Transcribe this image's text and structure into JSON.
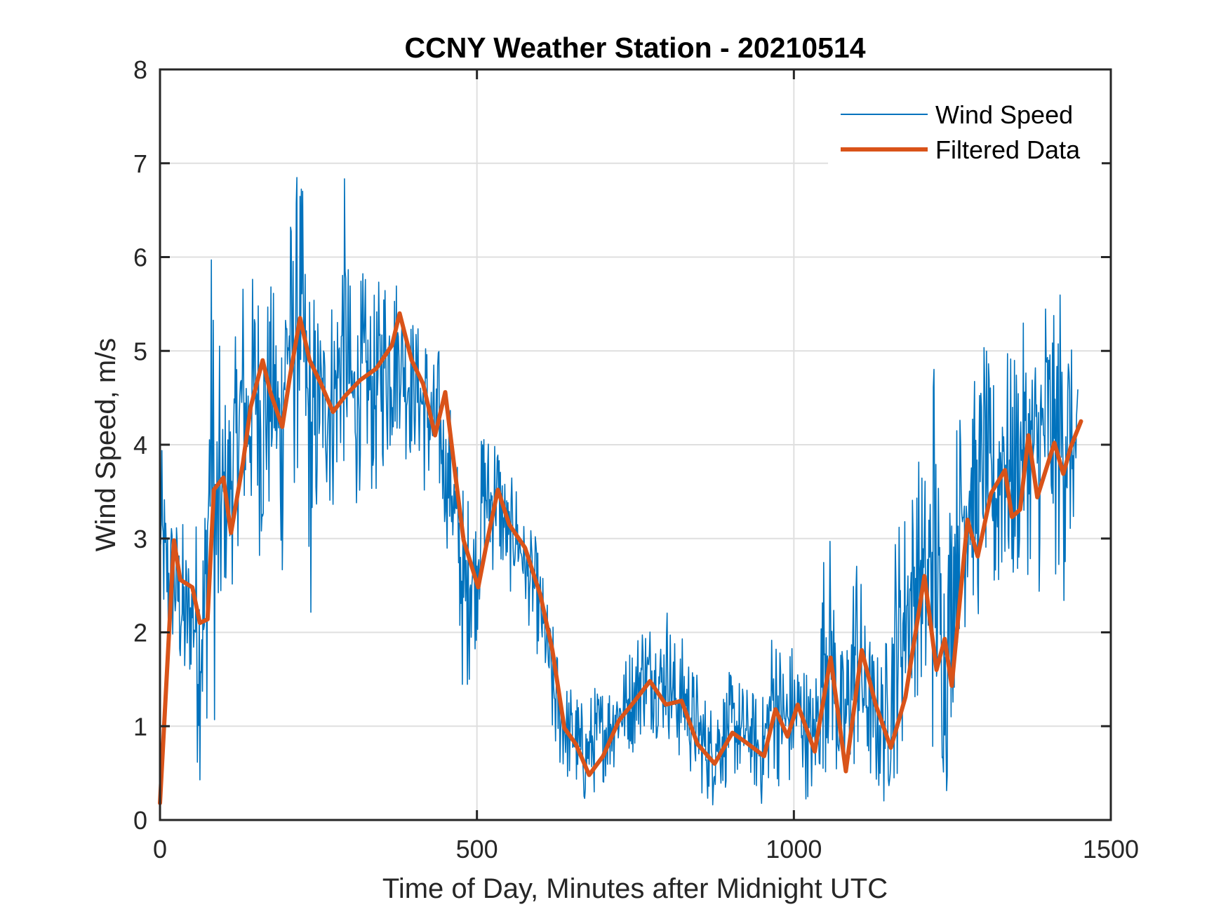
{
  "chart_data": {
    "type": "line",
    "title": "CCNY Weather Station - 20210514",
    "xlabel": "Time of Day, Minutes after Midnight UTC",
    "ylabel": "Wind Speed, m/s",
    "xlim": [
      0,
      1500
    ],
    "ylim": [
      0,
      8
    ],
    "xticks": [
      0,
      500,
      1000,
      1500
    ],
    "xtick_labels": [
      "0",
      "500",
      "1000",
      "1500"
    ],
    "yticks": [
      0,
      1,
      2,
      3,
      4,
      5,
      6,
      7,
      8
    ],
    "ytick_labels": [
      "0",
      "1",
      "2",
      "3",
      "4",
      "5",
      "6",
      "7",
      "8"
    ],
    "grid": true,
    "legend": {
      "placement": "top-right",
      "entries": [
        "Wind Speed",
        "Filtered Data"
      ]
    },
    "colors": {
      "wind_speed": "#0072BD",
      "filtered": "#D95319",
      "axis": "#262626",
      "grid": "#DFDFDF"
    },
    "series": [
      {
        "name": "Wind Speed",
        "description": "raw 1-minute wind speed, summarized as [minute, low, high] envelope samples",
        "envelope": [
          [
            0,
            2.3,
            4.1
          ],
          [
            10,
            1.6,
            3.6
          ],
          [
            20,
            1.7,
            3.4
          ],
          [
            30,
            1.4,
            3.3
          ],
          [
            40,
            0.9,
            3.2
          ],
          [
            50,
            1.5,
            3.0
          ],
          [
            60,
            0.4,
            3.5
          ],
          [
            70,
            0.4,
            3.7
          ],
          [
            80,
            1.8,
            6.4
          ],
          [
            90,
            0.4,
            5.4
          ],
          [
            100,
            2.3,
            4.6
          ],
          [
            110,
            2.2,
            4.8
          ],
          [
            120,
            2.9,
            5.2
          ],
          [
            130,
            2.9,
            6.1
          ],
          [
            140,
            2.8,
            5.6
          ],
          [
            150,
            3.2,
            6.1
          ],
          [
            160,
            2.6,
            5.9
          ],
          [
            170,
            2.9,
            5.8
          ],
          [
            180,
            3.4,
            5.7
          ],
          [
            190,
            2.1,
            5.9
          ],
          [
            200,
            3.4,
            6.9
          ],
          [
            210,
            3.3,
            6.5
          ],
          [
            220,
            3.7,
            7.3
          ],
          [
            230,
            3.1,
            6.2
          ],
          [
            240,
            1.8,
            5.9
          ],
          [
            250,
            3.3,
            5.6
          ],
          [
            260,
            3.4,
            5.5
          ],
          [
            270,
            3.1,
            5.8
          ],
          [
            280,
            3.4,
            6.0
          ],
          [
            290,
            3.6,
            7.0
          ],
          [
            300,
            3.4,
            5.8
          ],
          [
            310,
            3.2,
            5.6
          ],
          [
            320,
            3.8,
            5.9
          ],
          [
            330,
            3.5,
            5.7
          ],
          [
            340,
            3.3,
            5.6
          ],
          [
            350,
            3.7,
            6.0
          ],
          [
            360,
            3.6,
            6.3
          ],
          [
            370,
            3.9,
            6.0
          ],
          [
            380,
            4.2,
            5.8
          ],
          [
            390,
            3.7,
            5.6
          ],
          [
            400,
            3.9,
            5.4
          ],
          [
            410,
            3.7,
            5.3
          ],
          [
            420,
            3.3,
            5.4
          ],
          [
            430,
            3.4,
            4.9
          ],
          [
            440,
            3.3,
            5.1
          ],
          [
            450,
            3.0,
            4.4
          ],
          [
            460,
            2.6,
            4.5
          ],
          [
            470,
            2.1,
            3.9
          ],
          [
            480,
            1.0,
            3.6
          ],
          [
            490,
            1.6,
            3.6
          ],
          [
            500,
            1.9,
            3.4
          ],
          [
            510,
            2.6,
            4.4
          ],
          [
            520,
            2.5,
            4.2
          ],
          [
            530,
            2.7,
            4.4
          ],
          [
            540,
            2.5,
            4.0
          ],
          [
            550,
            2.4,
            3.5
          ],
          [
            560,
            2.4,
            3.8
          ],
          [
            570,
            2.4,
            3.3
          ],
          [
            580,
            2.1,
            3.1
          ],
          [
            590,
            1.9,
            3.1
          ],
          [
            600,
            1.6,
            2.8
          ],
          [
            610,
            1.3,
            2.4
          ],
          [
            620,
            0.6,
            2.1
          ],
          [
            630,
            0.5,
            1.8
          ],
          [
            640,
            0.4,
            1.5
          ],
          [
            650,
            0.3,
            1.5
          ],
          [
            660,
            0.2,
            1.4
          ],
          [
            670,
            0.1,
            1.2
          ],
          [
            680,
            0.2,
            1.4
          ],
          [
            690,
            0.3,
            1.5
          ],
          [
            700,
            0.4,
            1.5
          ],
          [
            710,
            0.4,
            1.6
          ],
          [
            720,
            0.6,
            1.7
          ],
          [
            730,
            0.6,
            1.7
          ],
          [
            740,
            0.7,
            1.9
          ],
          [
            750,
            0.7,
            2.0
          ],
          [
            760,
            0.9,
            2.3
          ],
          [
            770,
            0.9,
            2.2
          ],
          [
            780,
            0.9,
            2.3
          ],
          [
            790,
            0.8,
            2.1
          ],
          [
            800,
            0.9,
            2.4
          ],
          [
            810,
            0.6,
            2.0
          ],
          [
            820,
            0.6,
            1.9
          ],
          [
            830,
            0.5,
            2.1
          ],
          [
            840,
            0.4,
            1.7
          ],
          [
            850,
            0.3,
            1.6
          ],
          [
            860,
            0.2,
            1.4
          ],
          [
            870,
            0.1,
            1.3
          ],
          [
            880,
            0.2,
            1.5
          ],
          [
            890,
            0.3,
            1.5
          ],
          [
            900,
            0.4,
            1.6
          ],
          [
            910,
            0.4,
            1.6
          ],
          [
            920,
            0.3,
            1.5
          ],
          [
            930,
            0.5,
            1.4
          ],
          [
            940,
            0.2,
            1.4
          ],
          [
            950,
            0.1,
            1.3
          ],
          [
            960,
            0.3,
            1.9
          ],
          [
            970,
            0.4,
            2.4
          ],
          [
            980,
            0.3,
            1.9
          ],
          [
            990,
            0.2,
            1.9
          ],
          [
            1000,
            0.3,
            2.0
          ],
          [
            1010,
            0.4,
            1.9
          ],
          [
            1020,
            0.2,
            1.7
          ],
          [
            1030,
            0.1,
            1.5
          ],
          [
            1040,
            0.3,
            2.2
          ],
          [
            1050,
            0.5,
            3.4
          ],
          [
            1060,
            0.6,
            3.0
          ],
          [
            1070,
            0.2,
            2.0
          ],
          [
            1080,
            0.1,
            1.8
          ],
          [
            1090,
            0.3,
            2.7
          ],
          [
            1100,
            0.5,
            3.3
          ],
          [
            1110,
            0.4,
            2.2
          ],
          [
            1120,
            0.3,
            2.1
          ],
          [
            1130,
            0.2,
            1.8
          ],
          [
            1140,
            0.1,
            1.9
          ],
          [
            1150,
            0.2,
            2.1
          ],
          [
            1160,
            0.4,
            3.3
          ],
          [
            1170,
            0.6,
            3.4
          ],
          [
            1180,
            1.1,
            3.6
          ],
          [
            1190,
            1.3,
            3.8
          ],
          [
            1200,
            1.3,
            4.0
          ],
          [
            1210,
            0.8,
            3.8
          ],
          [
            1220,
            0.5,
            5.6
          ],
          [
            1230,
            0.7,
            3.6
          ],
          [
            1240,
            0.1,
            3.2
          ],
          [
            1250,
            1.1,
            4.1
          ],
          [
            1260,
            1.9,
            4.5
          ],
          [
            1270,
            2.0,
            4.6
          ],
          [
            1280,
            2.3,
            4.9
          ],
          [
            1290,
            2.0,
            4.6
          ],
          [
            1300,
            2.7,
            5.3
          ],
          [
            1310,
            2.3,
            4.7
          ],
          [
            1320,
            1.9,
            5.0
          ],
          [
            1330,
            2.4,
            5.7
          ],
          [
            1340,
            2.3,
            4.9
          ],
          [
            1350,
            2.3,
            5.2
          ],
          [
            1360,
            2.7,
            5.3
          ],
          [
            1370,
            2.6,
            5.3
          ],
          [
            1380,
            2.7,
            5.2
          ],
          [
            1390,
            2.2,
            5.8
          ],
          [
            1400,
            2.5,
            6.0
          ],
          [
            1410,
            2.6,
            5.4
          ],
          [
            1420,
            2.3,
            5.9
          ],
          [
            1430,
            2.2,
            6.1
          ],
          [
            1440,
            3.0,
            4.8
          ],
          [
            1448,
            3.4,
            4.6
          ]
        ]
      },
      {
        "name": "Filtered Data",
        "points": [
          [
            0,
            0.18
          ],
          [
            22,
            2.98
          ],
          [
            32,
            2.56
          ],
          [
            51,
            2.48
          ],
          [
            63,
            2.1
          ],
          [
            75,
            2.14
          ],
          [
            85,
            3.52
          ],
          [
            100,
            3.65
          ],
          [
            112,
            3.06
          ],
          [
            131,
            3.81
          ],
          [
            143,
            4.4
          ],
          [
            162,
            4.9
          ],
          [
            174,
            4.56
          ],
          [
            193,
            4.19
          ],
          [
            205,
            4.73
          ],
          [
            221,
            5.35
          ],
          [
            236,
            4.9
          ],
          [
            254,
            4.65
          ],
          [
            273,
            4.35
          ],
          [
            292,
            4.52
          ],
          [
            316,
            4.69
          ],
          [
            341,
            4.81
          ],
          [
            366,
            5.06
          ],
          [
            378,
            5.4
          ],
          [
            397,
            4.9
          ],
          [
            415,
            4.65
          ],
          [
            434,
            4.1
          ],
          [
            450,
            4.56
          ],
          [
            465,
            3.73
          ],
          [
            479,
            2.98
          ],
          [
            502,
            2.48
          ],
          [
            514,
            2.9
          ],
          [
            533,
            3.52
          ],
          [
            551,
            3.15
          ],
          [
            576,
            2.9
          ],
          [
            600,
            2.4
          ],
          [
            619,
            1.81
          ],
          [
            638,
            0.98
          ],
          [
            656,
            0.81
          ],
          [
            677,
            0.48
          ],
          [
            699,
            0.68
          ],
          [
            724,
            1.06
          ],
          [
            749,
            1.27
          ],
          [
            773,
            1.48
          ],
          [
            798,
            1.23
          ],
          [
            823,
            1.27
          ],
          [
            848,
            0.81
          ],
          [
            875,
            0.6
          ],
          [
            903,
            0.93
          ],
          [
            928,
            0.81
          ],
          [
            953,
            0.68
          ],
          [
            971,
            1.18
          ],
          [
            990,
            0.89
          ],
          [
            1006,
            1.23
          ],
          [
            1033,
            0.73
          ],
          [
            1058,
            1.73
          ],
          [
            1082,
            0.52
          ],
          [
            1107,
            1.81
          ],
          [
            1129,
            1.23
          ],
          [
            1153,
            0.77
          ],
          [
            1176,
            1.31
          ],
          [
            1206,
            2.6
          ],
          [
            1225,
            1.6
          ],
          [
            1238,
            1.93
          ],
          [
            1249,
            1.43
          ],
          [
            1274,
            3.2
          ],
          [
            1290,
            2.81
          ],
          [
            1311,
            3.48
          ],
          [
            1333,
            3.73
          ],
          [
            1344,
            3.23
          ],
          [
            1357,
            3.31
          ],
          [
            1370,
            4.1
          ],
          [
            1384,
            3.44
          ],
          [
            1411,
            4.02
          ],
          [
            1425,
            3.69
          ],
          [
            1437,
            3.98
          ],
          [
            1453,
            4.25
          ]
        ]
      }
    ]
  }
}
